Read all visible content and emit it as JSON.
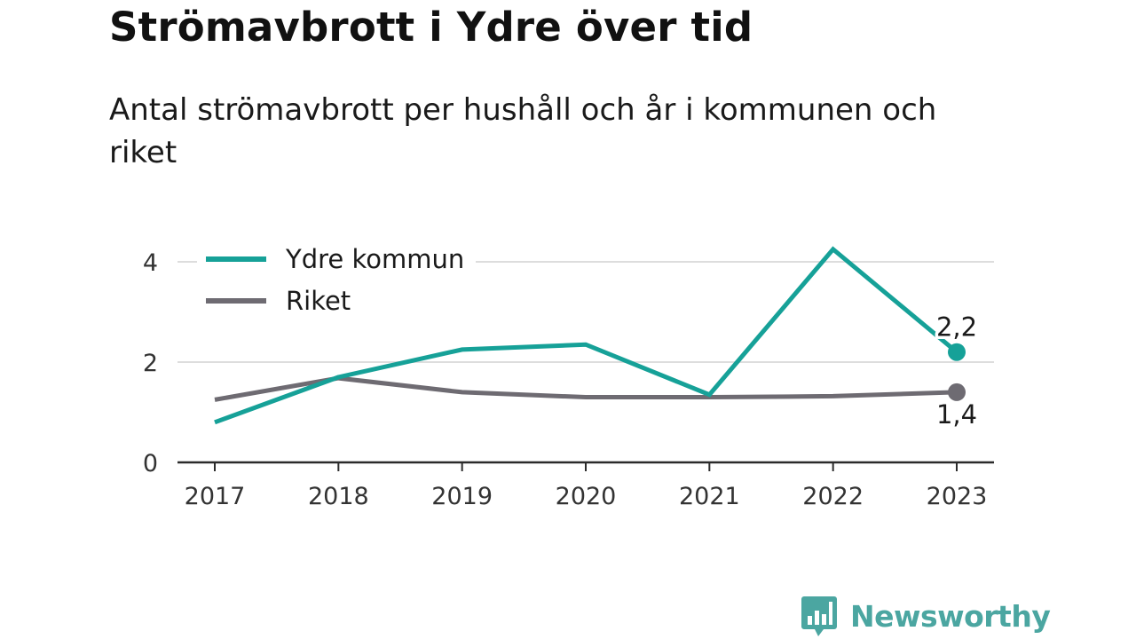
{
  "title": "Strömavbrott i Ydre över tid",
  "subtitle": "Antal strömavbrott per hushåll och år i kommunen och riket",
  "brand": {
    "name": "Newsworthy",
    "color": "#4ba6a1",
    "icon": "bar-chart-speech-bubble-icon"
  },
  "chart_data": {
    "type": "line",
    "x": [
      "2017",
      "2018",
      "2019",
      "2020",
      "2021",
      "2022",
      "2023"
    ],
    "ylim": [
      0,
      4.5
    ],
    "yticks": [
      0,
      2,
      4
    ],
    "grid": true,
    "legend_position": "top-left",
    "series": [
      {
        "name": "Ydre kommun",
        "color": "#16a198",
        "values": [
          0.8,
          1.7,
          2.25,
          2.35,
          1.35,
          4.25,
          2.2
        ],
        "end_label": "2,2"
      },
      {
        "name": "Riket",
        "color": "#6e6b72",
        "values": [
          1.25,
          1.68,
          1.4,
          1.3,
          1.3,
          1.32,
          1.4
        ],
        "end_label": "1,4"
      }
    ]
  }
}
